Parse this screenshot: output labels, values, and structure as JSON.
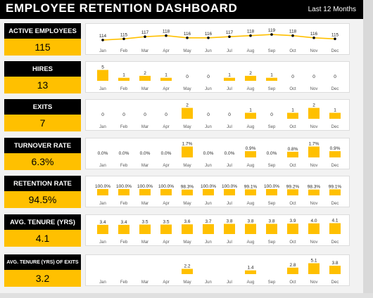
{
  "dashboard": {
    "title": "EMPLOYEE RETENTION DASHBOARD",
    "period": "Last 12 Months"
  },
  "colors": {
    "accent": "#ffc000",
    "header": "#000000",
    "line_marker": "#000000"
  },
  "kpis": [
    {
      "label": "ACTIVE EMPLOYEES",
      "value": "115"
    },
    {
      "label": "HIRES",
      "value": "13"
    },
    {
      "label": "EXITS",
      "value": "7"
    },
    {
      "label": "TURNOVER RATE",
      "value": "6.3%"
    },
    {
      "label": "RETENTION RATE",
      "value": "94.5%"
    },
    {
      "label": "AVG. TENURE (YRS)",
      "value": "4.1"
    },
    {
      "label": "AVG. TENURE (YRS) OF EXITS",
      "value": "3.2"
    }
  ],
  "chart_data": [
    {
      "type": "line",
      "categories": [
        "Jan",
        "Feb",
        "Mar",
        "Apr",
        "May",
        "Jun",
        "Jul",
        "Aug",
        "Sep",
        "Oct",
        "Nov",
        "Dec"
      ],
      "values": [
        114,
        115,
        117,
        118,
        116,
        116,
        117,
        118,
        119,
        118,
        116,
        115
      ],
      "labels": [
        "114",
        "115",
        "117",
        "118",
        "116",
        "116",
        "117",
        "118",
        "119",
        "118",
        "116",
        "115"
      ]
    },
    {
      "type": "bar",
      "categories": [
        "Jan",
        "Feb",
        "Mar",
        "Apr",
        "May",
        "Jun",
        "Jul",
        "Aug",
        "Sep",
        "Oct",
        "Nov",
        "Dec"
      ],
      "values": [
        5,
        1,
        2,
        1,
        0,
        0,
        1,
        2,
        1,
        0,
        0,
        0
      ],
      "labels": [
        "5",
        "1",
        "2",
        "1",
        "0",
        "0",
        "1",
        "2",
        "1",
        "0",
        "0",
        "0"
      ]
    },
    {
      "type": "bar",
      "categories": [
        "Jan",
        "Feb",
        "Mar",
        "Apr",
        "May",
        "Jun",
        "Jul",
        "Aug",
        "Sep",
        "Oct",
        "Nov",
        "Dec"
      ],
      "values": [
        0,
        0,
        0,
        0,
        2,
        0,
        0,
        1,
        0,
        1,
        2,
        1
      ],
      "labels": [
        "0",
        "0",
        "0",
        "0",
        "2",
        "0",
        "0",
        "1",
        "0",
        "1",
        "2",
        "1"
      ]
    },
    {
      "type": "bar",
      "categories": [
        "Jan",
        "Feb",
        "Mar",
        "Apr",
        "May",
        "Jun",
        "Jul",
        "Aug",
        "Sep",
        "Oct",
        "Nov",
        "Dec"
      ],
      "values": [
        0,
        0,
        0,
        0,
        1.7,
        0,
        0,
        0.9,
        0,
        0.8,
        1.7,
        0.9
      ],
      "labels": [
        "0.0%",
        "0.0%",
        "0.0%",
        "0.0%",
        "1.7%",
        "0.0%",
        "0.0%",
        "0.9%",
        "0.0%",
        "0.8%",
        "1.7%",
        "0.9%"
      ]
    },
    {
      "type": "bar",
      "categories": [
        "Jan",
        "Feb",
        "Mar",
        "Apr",
        "May",
        "Jun",
        "Jul",
        "Aug",
        "Sep",
        "Oct",
        "Nov",
        "Dec"
      ],
      "values": [
        100,
        100,
        100,
        100,
        98.3,
        100,
        100,
        99.1,
        100,
        99.2,
        98.3,
        99.1
      ],
      "labels": [
        "100.0%",
        "100.0%",
        "100.0%",
        "100.0%",
        "98.3%",
        "100.0%",
        "100.0%",
        "99.1%",
        "100.0%",
        "99.2%",
        "98.3%",
        "99.1%"
      ]
    },
    {
      "type": "bar",
      "categories": [
        "Jan",
        "Feb",
        "Mar",
        "Apr",
        "May",
        "Jun",
        "Jul",
        "Aug",
        "Sep",
        "Oct",
        "Nov",
        "Dec"
      ],
      "values": [
        3.4,
        3.4,
        3.5,
        3.5,
        3.6,
        3.7,
        3.8,
        3.8,
        3.8,
        3.9,
        4.0,
        4.1
      ],
      "labels": [
        "3.4",
        "3.4",
        "3.5",
        "3.5",
        "3.6",
        "3.7",
        "3.8",
        "3.8",
        "3.8",
        "3.9",
        "4.0",
        "4.1"
      ]
    },
    {
      "type": "bar",
      "categories": [
        "Jan",
        "Feb",
        "Mar",
        "Apr",
        "May",
        "Jun",
        "Jul",
        "Aug",
        "Sep",
        "Oct",
        "Nov",
        "Dec"
      ],
      "values": [
        null,
        null,
        null,
        null,
        2.2,
        null,
        null,
        1.4,
        null,
        2.8,
        5.1,
        3.8
      ],
      "labels": [
        "",
        "",
        "",
        "",
        "2.2",
        "",
        "",
        "1.4",
        "",
        "2.8",
        "5.1",
        "3.8"
      ]
    }
  ]
}
